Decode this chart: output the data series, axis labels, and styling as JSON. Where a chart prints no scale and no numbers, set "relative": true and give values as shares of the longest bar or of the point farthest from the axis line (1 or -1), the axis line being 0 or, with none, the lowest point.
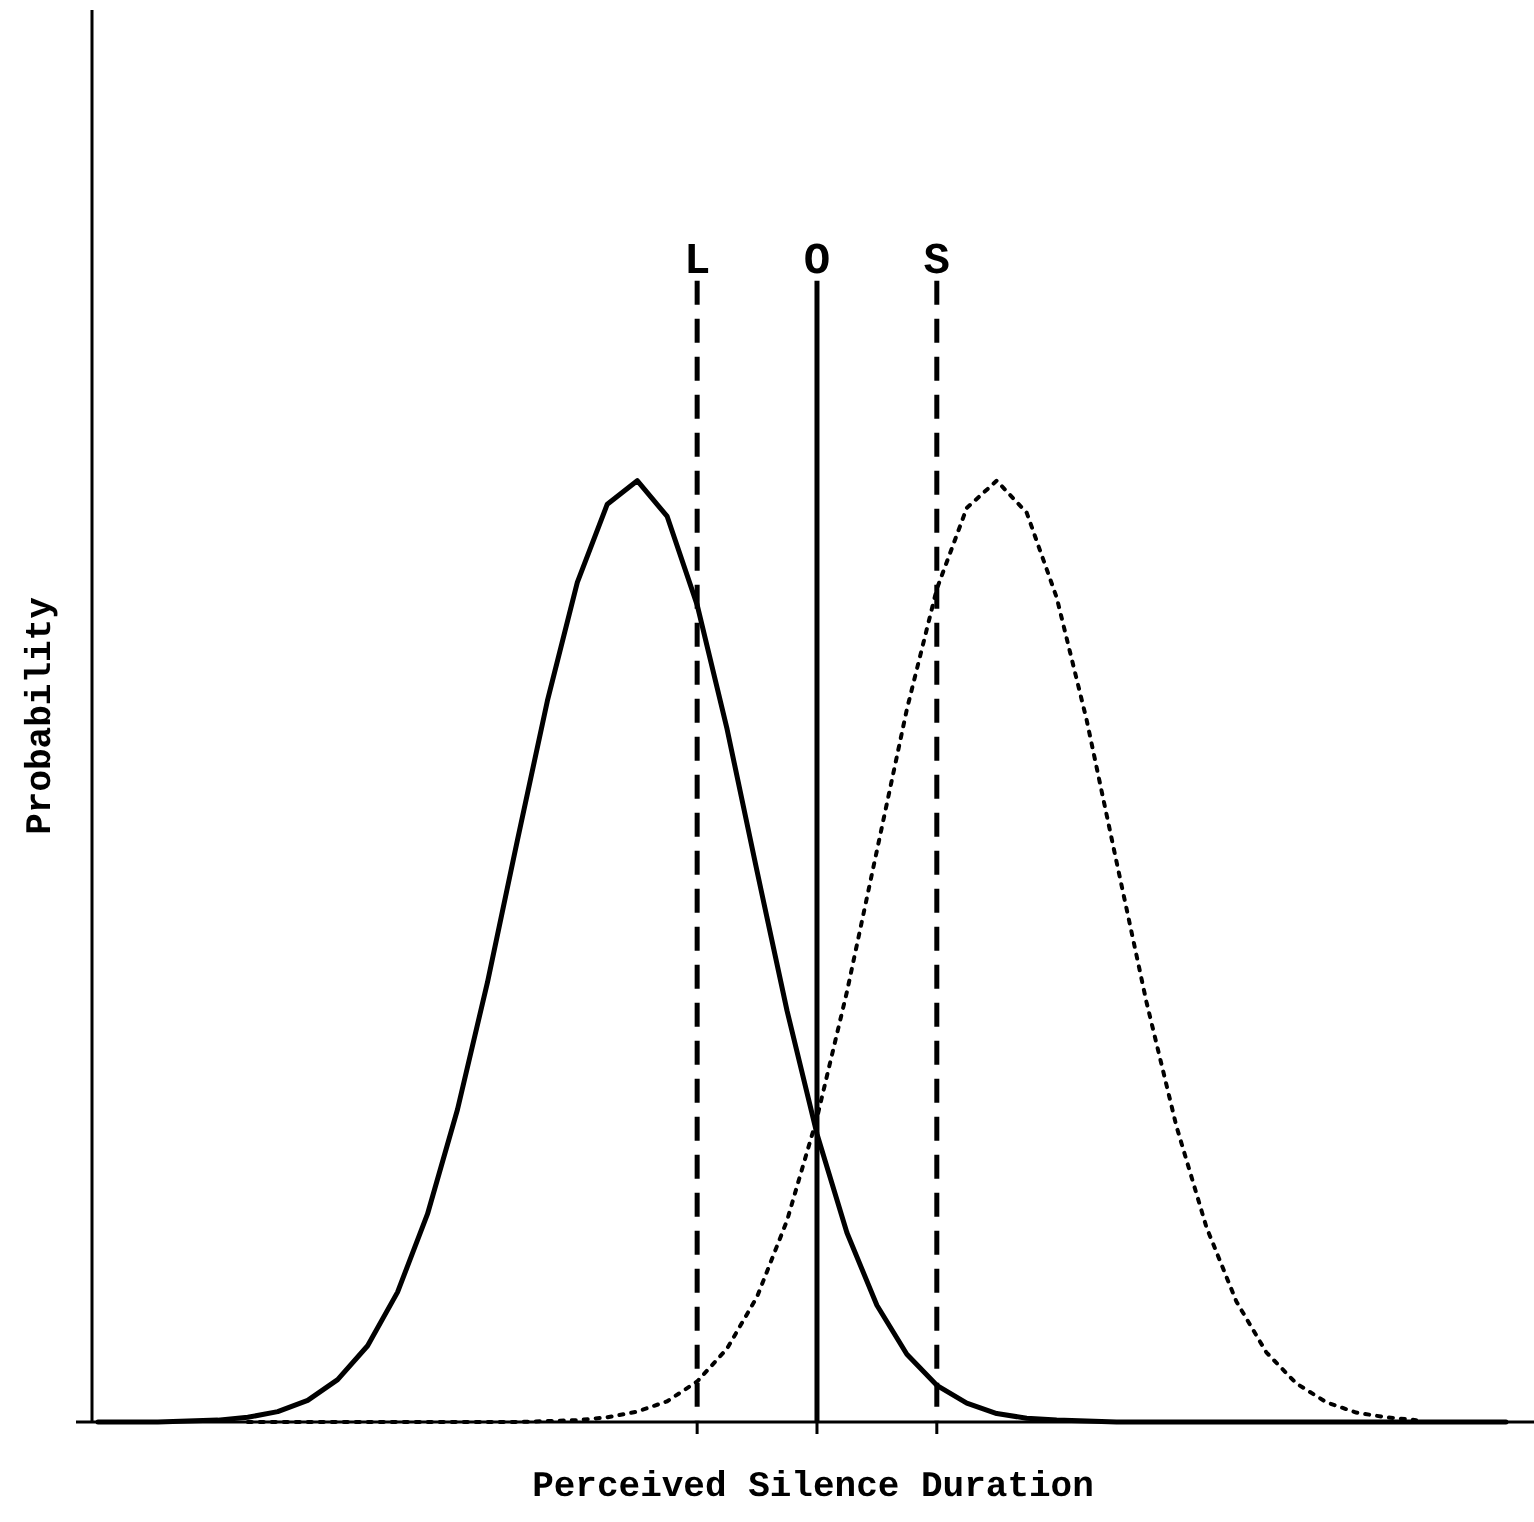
{
  "chart_data": {
    "type": "line",
    "xlabel": "Perceived Silence Duration",
    "ylabel": "Probability",
    "relative": true,
    "categories": [
      null,
      null,
      null,
      null,
      null,
      null,
      null,
      null,
      null,
      null,
      null,
      null,
      null,
      null,
      null,
      null,
      null,
      null,
      null,
      null,
      "L",
      null,
      null,
      null,
      "O",
      null,
      null,
      null,
      "S",
      null,
      null,
      null,
      null,
      null,
      null,
      null,
      null,
      null,
      null,
      null,
      null,
      null,
      null,
      null,
      null,
      null,
      null,
      null
    ],
    "series": [
      {
        "color": "#000000",
        "line_style": "solid",
        "values": [
          0,
          0,
          0,
          0.001,
          0.002,
          0.005,
          0.011,
          0.023,
          0.045,
          0.081,
          0.138,
          0.221,
          0.332,
          0.467,
          0.618,
          0.766,
          0.892,
          0.975,
          1,
          0.962,
          0.868,
          0.736,
          0.585,
          0.437,
          0.306,
          0.201,
          0.124,
          0.072,
          0.039,
          0.02,
          0.009,
          0.004,
          0.002,
          0.001,
          0,
          0,
          0,
          0,
          0,
          0,
          0,
          0,
          0,
          0,
          0,
          0,
          0,
          0
        ]
      },
      {
        "color": "#000000",
        "line_style": "dotted",
        "values": [
          null,
          null,
          null,
          null,
          null,
          0,
          0,
          0,
          0,
          0,
          0,
          0,
          0,
          0,
          0,
          0.001,
          0.002,
          0.005,
          0.011,
          0.022,
          0.043,
          0.078,
          0.133,
          0.214,
          0.323,
          0.457,
          0.607,
          0.757,
          0.885,
          0.971,
          1,
          0.966,
          0.876,
          0.746,
          0.595,
          0.446,
          0.314,
          0.207,
          0.128,
          0.074,
          0.041,
          0.021,
          0.01,
          0.005,
          0.002,
          null,
          null,
          null
        ]
      }
    ],
    "ref_lines": [
      {
        "axis": "x",
        "value": "L",
        "line_style": "dashed",
        "color": "#000000"
      },
      {
        "axis": "x",
        "value": "O",
        "line_style": "solid",
        "color": "#000000"
      },
      {
        "axis": "x",
        "value": "S",
        "line_style": "dashed",
        "color": "#000000"
      }
    ]
  }
}
